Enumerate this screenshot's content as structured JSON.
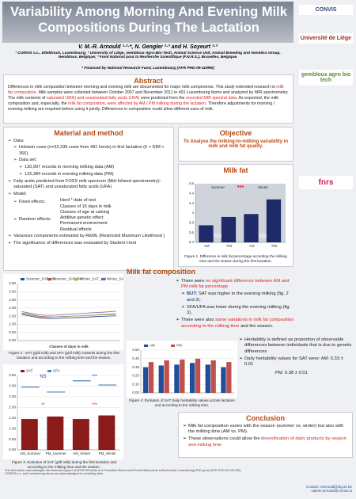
{
  "header": {
    "title": "Variability Among Morning And Evening Milk Compositions During The Lactation",
    "authors": "V. M.-R. Arnould ¹·²·*, N. Gengler ²·³ and H. Soyeurt ²·³",
    "affiliations": "¹ CONVIS s.c., Ettelbruck, Luxembourg; ² University of Liège, Gembloux Agro-Bio-Tech, Animal Science Unit, Animal Breeding and Genetics Group, Gembloux, Belgique; ³ Fond National pour la Recherche Scientifique (F.N.R.S.), Bruxelles, Belgique.",
    "funding": "* Financed by National Research Fund, Luxembourg (AFR PHD-09-119RE)"
  },
  "logos": [
    "CONVIS",
    "Université de Liège",
    "gembloux agro bio tech",
    "fnrs"
  ],
  "abstract": {
    "heading": "Abstract",
    "text": [
      "Differences in milk composition between morning and evening milk are documented for major milk components. This study extended research to ",
      "milk fat composition",
      ". Milk samples were collected between October 2007 and November 2011 in 491 Luxembourg farms and analyzed by MIR spectrometry. The milk contents of ",
      "saturated (SFA) and unsaturated fatty acids (UFA)",
      " were predicted from the ",
      "recorded MIR spectral data",
      ". As expected, the milk composition and, especially, the ",
      "milk fat composition, were affected by AM / PM milking during the lactation",
      ". Therefore adjustments for morning / evening milking are required before using it jointly. Differences in composition could allow different uses of milk."
    ]
  },
  "methods": {
    "heading": "Material and method",
    "data": "Data:",
    "cows": "Holstein cows (n=32,339 cows from 491 herds) in first lactation (5 < DIM < 366).",
    "dataset": "Data set:",
    "am": "130,997 records in morning milking data (AM)",
    "pm": "125,384 records in evening milking data (PM)",
    "fa": "Fatty acids predicted from FOSS milk spectrum (Mid-Infared spectrometry): saturated (SAT) and unsaturated fatty acids (UFA)",
    "model": "Model:",
    "fixed": "Fixed effects:",
    "fixed_items": [
      "Herd * date of test",
      "Classes of 15 days in milk",
      "Classes of age at calving"
    ],
    "random": "Random effects:",
    "random_items": [
      "Additive genetic effect",
      "Permanent environment",
      "Residual effects"
    ],
    "reml": "Variances components estimated by REML (Restricted Maximum Likelihood )",
    "ttest": "The significance of differences was evaluated by Student t-test"
  },
  "objective": {
    "heading": "Objective",
    "text": "To Analyse the milking-to-milking variability in milk and milk fat quality."
  },
  "milk_fat": {
    "heading": "Milk fat",
    "caption": "Figure 1. Difference in milk fat percentage according the milking time and the season during the first lactation.",
    "chart": {
      "type": "bar",
      "groups": [
        "Summer",
        "Winter"
      ],
      "categories": [
        "AM",
        "PM",
        "AM",
        "PM"
      ],
      "values": [
        3.75,
        3.92,
        3.98,
        4.28
      ],
      "color": "#1f2a6b",
      "ylim": [
        3.4,
        4.6
      ],
      "yticks": [
        3.4,
        3.6,
        3.8,
        4,
        4.2,
        4.4,
        4.6
      ],
      "annotations": [
        "***",
        "NS",
        "NS"
      ]
    }
  },
  "composition": {
    "heading": "Milk fat composition",
    "bullets": [
      [
        "There were ",
        "no significant difference between AM and PM milk fat percentage"
      ]
    ],
    "sub": [
      "SAT was higher in the evening milking (fig. 2 and 3).",
      "SFA/UFA was lower during the evening milking (fig. 3)."
    ],
    "but": "BUT:",
    "also": [
      "There were also ",
      "some variations in milk fat composition according to the milking time",
      " and the season."
    ]
  },
  "fig2": {
    "caption": "Figure 2 . SAT (g/dl milk) and UFA (g/dl milk) contents during the first lactation and according to the milking time and the season.",
    "chart": {
      "type": "line",
      "xlabel": "Classes of days in milk",
      "categories": [
        null,
        null,
        null,
        null,
        null,
        null,
        null,
        null,
        null,
        null,
        null,
        null
      ],
      "ylim": [
        0,
        3.5
      ],
      "yticks": [
        {
          "value": 0,
          "label": "0.00"
        },
        {
          "value": 0.5,
          "label": "0.50"
        },
        {
          "value": 1,
          "label": "1.00"
        },
        {
          "value": 1.5,
          "label": "1.50"
        },
        {
          "value": 2,
          "label": "2.00"
        },
        {
          "value": 2.5,
          "label": "2.50"
        },
        {
          "value": 3,
          "label": "3.00"
        },
        {
          "value": 3.5,
          "label": "3.50"
        }
      ],
      "series": [
        {
          "name": "Summer_SAT_AM",
          "color": "#1f4e9a",
          "values": [
            1.6,
            1.5,
            1.4,
            1.35,
            1.35,
            1.38,
            1.4,
            1.42,
            1.45,
            1.48,
            1.5,
            1.52
          ]
        },
        {
          "name": "Summer_SAT_PM",
          "color": "#c0504d",
          "values": [
            1.7,
            1.6,
            1.5,
            1.45,
            1.45,
            1.48,
            1.5,
            1.52,
            1.55,
            1.58,
            1.6,
            1.62
          ]
        },
        {
          "name": "Winter_SAT_AM",
          "color": "#9bbb59",
          "values": [
            1.65,
            1.55,
            1.45,
            1.42,
            1.44,
            1.46,
            1.5,
            1.53,
            1.56,
            1.6,
            1.63,
            1.66
          ]
        },
        {
          "name": "Winter_SAT_PM",
          "color": "#8064a2",
          "values": [
            1.78,
            1.68,
            1.58,
            1.55,
            1.56,
            1.6,
            1.63,
            1.66,
            1.7,
            1.73,
            1.76,
            1.8
          ]
        }
      ]
    }
  },
  "fig3": {
    "caption": "Figure 3. Evolution of SAT (g/dl milk) during the first lactation and according to the milking time and the season.",
    "chart": {
      "type": "bar",
      "categories": [
        "AM_Summer",
        "PM_Summer",
        "AM_Winter",
        "PM_Winter"
      ],
      "ylim": [
        0,
        3.5
      ],
      "yticks": [
        {
          "value": 0,
          "label": "0.00"
        },
        {
          "value": 0.5,
          "label": "0.50"
        },
        {
          "value": 1,
          "label": "1.00"
        },
        {
          "value": 1.5,
          "label": "1.50"
        },
        {
          "value": 2,
          "label": "2.00"
        },
        {
          "value": 2.5,
          "label": "2.50"
        },
        {
          "value": 3,
          "label": "3.00"
        },
        {
          "value": 3.5,
          "label": "3.50"
        }
      ],
      "series": [
        {
          "name": "SAT",
          "color": "#8b1a1a",
          "values": [
            1.45,
            1.57,
            1.45,
            1.62
          ]
        },
        {
          "name": "UFA",
          "color": "#4f81bd",
          "style": "line",
          "values": [
            2.95,
            2.72,
            3.25,
            3.05
          ]
        }
      ],
      "annotations": [
        "NS",
        "**",
        "***",
        "***"
      ]
    }
  },
  "fig4": {
    "caption": "Figure 4: Evolution of SAT daily heritability values  across lactation and according to the milking time.",
    "chart": {
      "type": "bar",
      "categories": [
        null,
        null,
        null,
        null,
        null,
        null
      ],
      "ylim": [
        0,
        0.5
      ],
      "yticks": [
        {
          "value": 0,
          "label": "0.00"
        },
        {
          "value": 0.1,
          "label": "0.10"
        },
        {
          "value": 0.2,
          "label": "0.20"
        },
        {
          "value": 0.3,
          "label": "0.30"
        },
        {
          "value": 0.4,
          "label": "0.40"
        },
        {
          "value": 0.5,
          "label": "0.50"
        }
      ],
      "series": [
        {
          "name": "AM",
          "color": "#1f4e9a",
          "values": [
            0.3,
            0.32,
            0.33,
            0.35,
            0.33,
            0.3
          ]
        },
        {
          "name": "PM",
          "color": "#c0504d",
          "values": [
            0.36,
            0.38,
            0.39,
            0.4,
            0.38,
            0.36
          ]
        }
      ]
    }
  },
  "heritability": {
    "definition": "Heritability is defined as proportion of observable differences between individuals that is due to genetic differences",
    "daily": "Daily heritability values for SAT were: AM: 0.33 ± 0.01",
    "pm": "PM: 0.38 ± 0.01"
  },
  "conclusion": {
    "heading": "Conclusion",
    "bullets": [
      [
        "Milk fat composition varies with the season (summer vs. winter) but also with the milking time (AM vs. PM)."
      ],
      [
        "These observations could allow the ",
        "diversification of dairy products by season and milking time"
      ]
    ]
  },
  "footer": {
    "ack": "The first author acknowledges the financial support of AFR/FNR (Aide à la Formation Recherche/Fonds National de la Recherche Luxembourg) PhD grant (AFR PHD-09-119-RE)",
    "data": "CONVIS s.c. and Luxembourg farms are acknowledged for providing data.",
    "contact": "Contact: varnould@ulg.ac.be",
    "email": "valerie.arnould@convis.lu"
  }
}
